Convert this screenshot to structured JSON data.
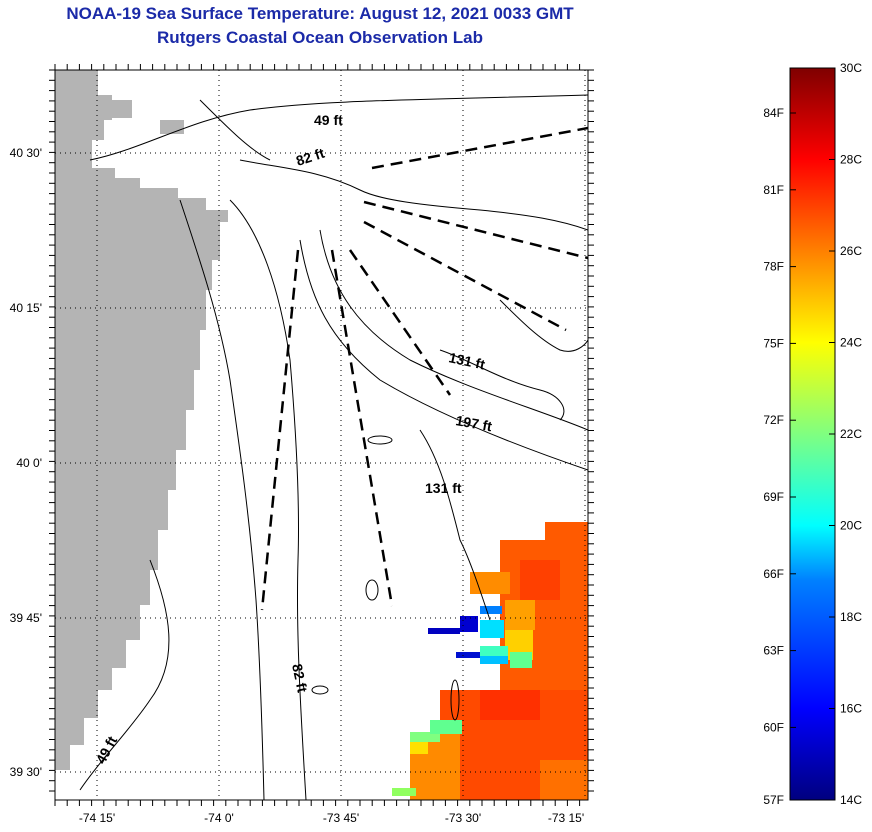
{
  "title_line1": "NOAA-19 Sea Surface Temperature:  August 12, 2021 0033 GMT",
  "title_line2": "Rutgers Coastal Ocean Observation Lab",
  "lon_ticks": [
    "-74 15'",
    "-74 0'",
    "-73 45'",
    "-73 30'",
    "-73 15'"
  ],
  "lat_ticks": [
    "40 30'",
    "40 15'",
    "40 0'",
    "39 45'",
    "39 30'"
  ],
  "contour_labels": [
    "49 ft",
    "82 ft",
    "131 ft",
    "197 ft",
    "131 ft",
    "82 ft",
    "49 ft"
  ],
  "colorbar": {
    "fahrenheit": [
      "84F",
      "81F",
      "78F",
      "75F",
      "72F",
      "69F",
      "66F",
      "63F",
      "60F",
      "57F"
    ],
    "celsius": [
      "30C",
      "28C",
      "26C",
      "24C",
      "22C",
      "20C",
      "18C",
      "16C",
      "14C"
    ],
    "colors": [
      "#00007f",
      "#0000ff",
      "#0080ff",
      "#00ffff",
      "#80ff80",
      "#ffff00",
      "#ff8000",
      "#ff0000",
      "#7f0000"
    ]
  },
  "colors": {
    "land": "#b4b4b4",
    "title": "#1b2aa8"
  }
}
